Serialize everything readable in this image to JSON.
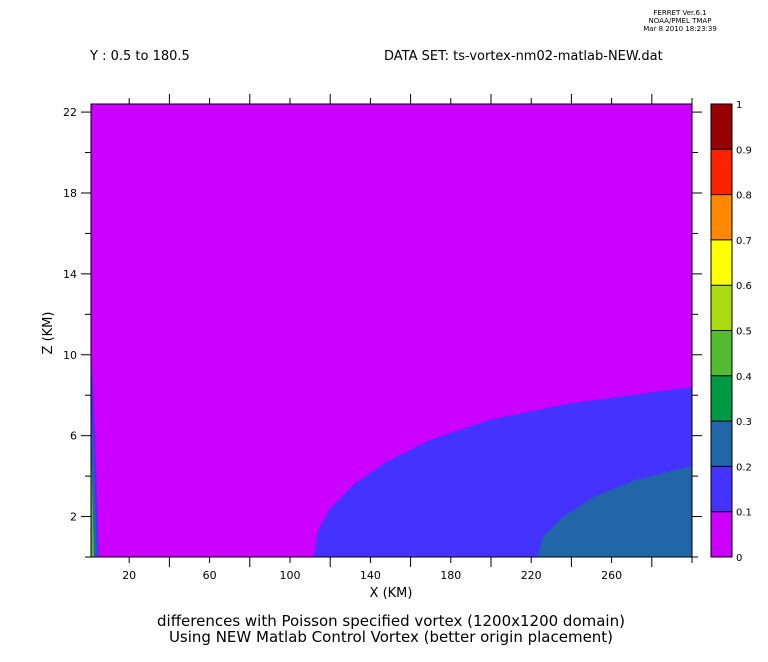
{
  "header": {
    "stamp_line1": "FERRET Ver.6.1",
    "stamp_line2": "NOAA/PMEL TMAP",
    "stamp_line3": "Mar 8 2010 18:23:39",
    "y_range": "Y : 0.5 to 180.5",
    "dataset": "DATA SET: ts-vortex-nm02-matlab-NEW.dat"
  },
  "chart_data": {
    "type": "heatmap",
    "title_line1": "differences with Poisson specified vortex (1200x1200 domain)",
    "title_line2": "Using NEW Matlab Control Vortex (better origin placement)",
    "xlabel": "X (KM)",
    "ylabel": "Z (KM)",
    "xlim": [
      1,
      300
    ],
    "ylim": [
      0,
      22.4
    ],
    "x_ticks": [
      20,
      60,
      100,
      140,
      180,
      220,
      260
    ],
    "y_ticks": [
      2,
      6,
      10,
      14,
      18,
      22
    ],
    "colorbar": {
      "levels": [
        0,
        0.1,
        0.2,
        0.3,
        0.4,
        0.5,
        0.6,
        0.7,
        0.8,
        0.9,
        1
      ],
      "tick_labels": [
        "0",
        "0.1",
        "0.2",
        "0.3",
        "0.4",
        "0.5",
        "0.6",
        "0.7",
        "0.8",
        "0.9",
        "1"
      ],
      "colors": [
        "#cc00ff",
        "#4433ff",
        "#2266aa",
        "#009944",
        "#55bb33",
        "#aadd11",
        "#ffff00",
        "#ff8800",
        "#ff2200",
        "#990000"
      ]
    },
    "contours": [
      {
        "band": "0.1-0.2",
        "color": "#4433ff",
        "boundary": [
          [
            112,
            0
          ],
          [
            114,
            1.3
          ],
          [
            120,
            2.4
          ],
          [
            132,
            3.6
          ],
          [
            148,
            4.7
          ],
          [
            170,
            5.8
          ],
          [
            200,
            6.8
          ],
          [
            240,
            7.6
          ],
          [
            270,
            8.0
          ],
          [
            300,
            8.4
          ]
        ]
      },
      {
        "band": "0.2-0.3",
        "color": "#2266aa",
        "boundary": [
          [
            223,
            0
          ],
          [
            226,
            1.0
          ],
          [
            236,
            2.0
          ],
          [
            252,
            3.0
          ],
          [
            272,
            3.8
          ],
          [
            300,
            4.5
          ]
        ]
      },
      {
        "band": "left-edge-0.1-0.2",
        "color": "#4433ff",
        "boundary": [
          [
            1,
            0
          ],
          [
            5,
            0
          ],
          [
            4,
            3.0
          ],
          [
            3,
            6.0
          ],
          [
            2,
            8.5
          ],
          [
            1,
            10.0
          ]
        ]
      },
      {
        "band": "left-edge-0.2-0.3",
        "color": "#2266aa",
        "boundary": [
          [
            1,
            0
          ],
          [
            4,
            0
          ],
          [
            3,
            3.0
          ],
          [
            2,
            6.0
          ],
          [
            1,
            7.0
          ]
        ]
      },
      {
        "band": "left-edge-0.4-0.6",
        "color": "#55bb33",
        "boundary": [
          [
            1,
            0
          ],
          [
            2.5,
            0
          ],
          [
            2,
            2.0
          ],
          [
            1.5,
            4.0
          ],
          [
            1,
            5.0
          ]
        ]
      }
    ],
    "grid": false,
    "legend": "right"
  }
}
